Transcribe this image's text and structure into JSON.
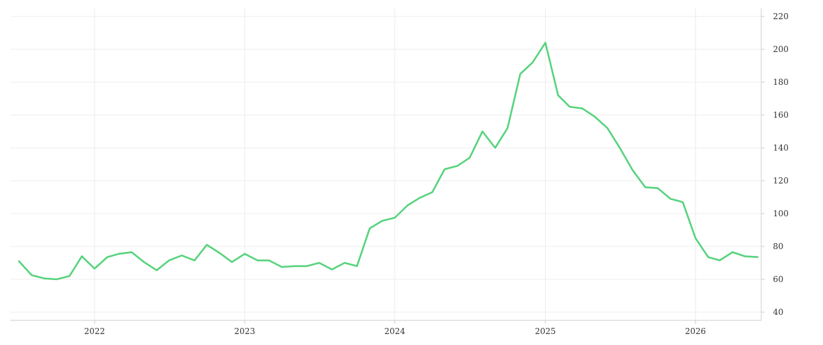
{
  "chart_data": {
    "type": "line",
    "title": "",
    "xlabel": "",
    "ylabel": "",
    "x_ticks": [
      "2022",
      "2023",
      "2024",
      "2025",
      "2026"
    ],
    "y_ticks": [
      40,
      60,
      80,
      100,
      120,
      140,
      160,
      180,
      200,
      220
    ],
    "xlim": [
      "2021-06-10",
      "2026-06-10"
    ],
    "ylim": [
      35,
      225
    ],
    "y_axis_position": "right",
    "grid": true,
    "legend": "none",
    "series": [
      {
        "color": "#56d37d",
        "points": [
          [
            "2021-07-01",
            71
          ],
          [
            "2021-08-01",
            62.5
          ],
          [
            "2021-09-01",
            60.5
          ],
          [
            "2021-10-01",
            60
          ],
          [
            "2021-11-01",
            62
          ],
          [
            "2021-12-01",
            74
          ],
          [
            "2022-01-01",
            66.5
          ],
          [
            "2022-02-01",
            73.5
          ],
          [
            "2022-03-01",
            75.5
          ],
          [
            "2022-04-01",
            76.5
          ],
          [
            "2022-05-01",
            70.5
          ],
          [
            "2022-06-01",
            65.5
          ],
          [
            "2022-07-01",
            71.5
          ],
          [
            "2022-08-01",
            74.5
          ],
          [
            "2022-09-01",
            71.5
          ],
          [
            "2022-10-01",
            81
          ],
          [
            "2022-11-01",
            76
          ],
          [
            "2022-12-01",
            70.5
          ],
          [
            "2023-01-01",
            75.5
          ],
          [
            "2023-02-01",
            71.5
          ],
          [
            "2023-03-01",
            71.5
          ],
          [
            "2023-04-01",
            67.5
          ],
          [
            "2023-05-01",
            68
          ],
          [
            "2023-06-01",
            68
          ],
          [
            "2023-07-01",
            70
          ],
          [
            "2023-08-01",
            66
          ],
          [
            "2023-09-01",
            70
          ],
          [
            "2023-10-01",
            68
          ],
          [
            "2023-11-01",
            91
          ],
          [
            "2023-12-01",
            95.5
          ],
          [
            "2024-01-01",
            97.5
          ],
          [
            "2024-02-01",
            105
          ],
          [
            "2024-03-01",
            109.5
          ],
          [
            "2024-04-01",
            113
          ],
          [
            "2024-05-01",
            127
          ],
          [
            "2024-06-01",
            129
          ],
          [
            "2024-07-01",
            134
          ],
          [
            "2024-08-01",
            150
          ],
          [
            "2024-09-01",
            140
          ],
          [
            "2024-10-01",
            152
          ],
          [
            "2024-11-01",
            185
          ],
          [
            "2024-12-01",
            192
          ],
          [
            "2025-01-01",
            204
          ],
          [
            "2025-02-01",
            172
          ],
          [
            "2025-03-01",
            165
          ],
          [
            "2025-04-01",
            164
          ],
          [
            "2025-05-01",
            159
          ],
          [
            "2025-06-01",
            152
          ],
          [
            "2025-07-01",
            140
          ],
          [
            "2025-08-01",
            126.5
          ],
          [
            "2025-09-01",
            116
          ],
          [
            "2025-10-01",
            115.5
          ],
          [
            "2025-11-01",
            109
          ],
          [
            "2025-12-01",
            107
          ],
          [
            "2026-01-01",
            85
          ],
          [
            "2026-02-01",
            73.5
          ],
          [
            "2026-03-01",
            71.5
          ],
          [
            "2026-04-01",
            76.5
          ],
          [
            "2026-05-01",
            74
          ],
          [
            "2026-06-01",
            73.5
          ]
        ]
      }
    ]
  }
}
